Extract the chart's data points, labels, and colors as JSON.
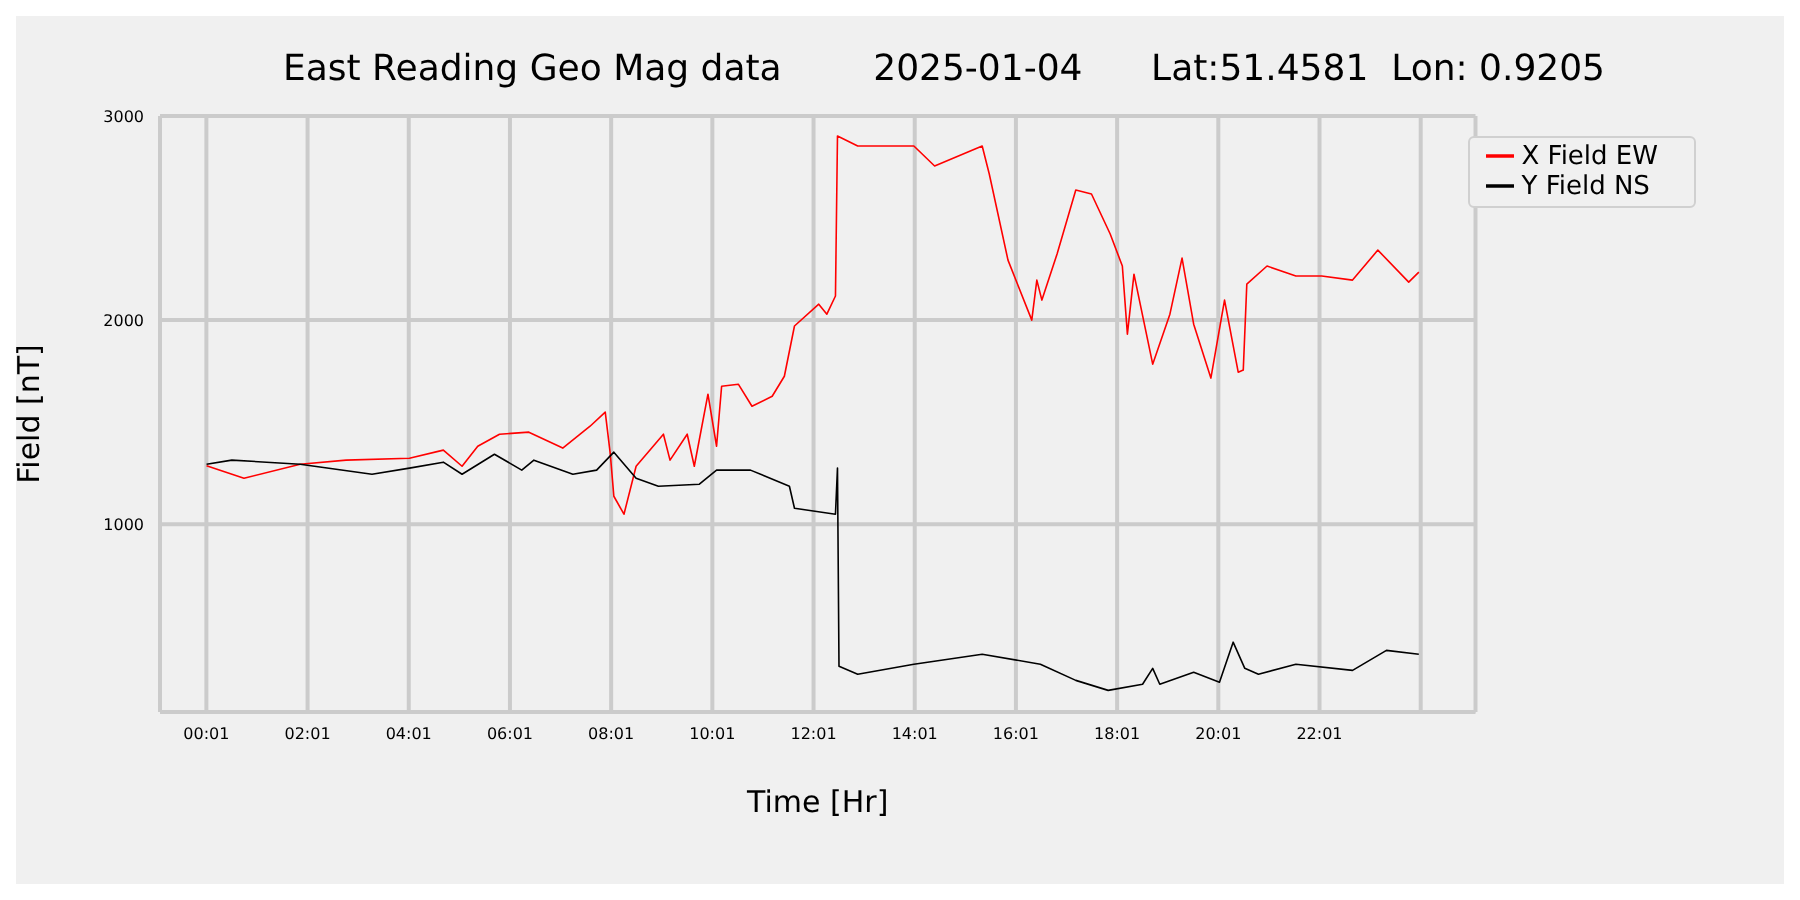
{
  "chart_data": {
    "type": "line",
    "title": "East Reading Geo Mag data        2025-01-04      Lat:51.4581  Lon: 0.9205",
    "xlabel": "Time  [Hr]",
    "ylabel": "Field  [nT]",
    "xlim": [
      -0.9,
      25.1
    ],
    "ylim": [
      80,
      3000
    ],
    "xticks": [
      {
        "value": 0.0167,
        "label": "00:01"
      },
      {
        "value": 2.0167,
        "label": "02:01"
      },
      {
        "value": 4.0167,
        "label": "04:01"
      },
      {
        "value": 6.0167,
        "label": "06:01"
      },
      {
        "value": 8.0167,
        "label": "08:01"
      },
      {
        "value": 10.0167,
        "label": "10:01"
      },
      {
        "value": 12.0167,
        "label": "12:01"
      },
      {
        "value": 14.0167,
        "label": "14:01"
      },
      {
        "value": 16.0167,
        "label": "16:01"
      },
      {
        "value": 18.0167,
        "label": "18:01"
      },
      {
        "value": 20.0167,
        "label": "20:01"
      },
      {
        "value": 22.0167,
        "label": "22:01"
      },
      {
        "value": 24.0167,
        "label": null
      }
    ],
    "yticks": [
      1000,
      2000,
      3000
    ],
    "grid": true,
    "legend": "top right",
    "marker": "none",
    "line_style": "solid",
    "series": [
      {
        "name": "X Field EW",
        "color": "#ff0000",
        "x": [
          0.02,
          0.76,
          1.87,
          2.78,
          4.03,
          4.7,
          5.07,
          5.38,
          5.81,
          6.39,
          7.06,
          7.6,
          7.9,
          8.0,
          8.07,
          8.27,
          8.51,
          9.05,
          9.18,
          9.52,
          9.66,
          9.93,
          10.1,
          10.2,
          10.53,
          10.8,
          11.2,
          11.44,
          11.64,
          12.12,
          12.28,
          12.45,
          12.49,
          12.89,
          14.0,
          14.41,
          15.35,
          15.49,
          15.86,
          16.33,
          16.43,
          16.53,
          16.83,
          17.2,
          17.51,
          17.88,
          18.12,
          18.22,
          18.35,
          18.72,
          19.06,
          19.3,
          19.53,
          19.87,
          20.14,
          20.41,
          20.51,
          20.58,
          20.98,
          21.55,
          22.06,
          22.67,
          23.17,
          23.78,
          23.98
        ],
        "values": [
          1287,
          1225,
          1294,
          1314,
          1323,
          1363,
          1284,
          1382,
          1441,
          1451,
          1373,
          1480,
          1549,
          1343,
          1137,
          1049,
          1284,
          1441,
          1314,
          1441,
          1284,
          1637,
          1382,
          1676,
          1686,
          1578,
          1627,
          1725,
          1971,
          2078,
          2029,
          2118,
          2902,
          2853,
          2853,
          2755,
          2853,
          2716,
          2294,
          2000,
          2196,
          2098,
          2324,
          2637,
          2618,
          2422,
          2265,
          1931,
          2225,
          1784,
          2029,
          2304,
          1980,
          1716,
          2098,
          1745,
          1755,
          2176,
          2265,
          2216,
          2216,
          2196,
          2343,
          2186,
          2235
        ]
      },
      {
        "name": "Y Field NS",
        "color": "#000000",
        "x": [
          0.02,
          0.52,
          1.87,
          3.29,
          4.03,
          4.7,
          5.07,
          5.71,
          6.25,
          6.49,
          7.26,
          7.73,
          8.07,
          8.51,
          8.95,
          9.76,
          10.1,
          10.77,
          11.54,
          11.64,
          12.45,
          12.49,
          12.52,
          12.89,
          14.0,
          15.35,
          16.5,
          17.2,
          17.84,
          18.52,
          18.72,
          18.86,
          19.53,
          20.04,
          20.31,
          20.54,
          20.81,
          21.55,
          22.67,
          23.34,
          23.98
        ],
        "values": [
          1294,
          1314,
          1294,
          1245,
          1275,
          1304,
          1245,
          1343,
          1265,
          1314,
          1245,
          1265,
          1353,
          1225,
          1186,
          1196,
          1265,
          1265,
          1186,
          1078,
          1049,
          1275,
          304,
          265,
          314,
          363,
          314,
          235,
          186,
          216,
          294,
          216,
          275,
          226,
          422,
          294,
          265,
          314,
          284,
          382,
          363
        ]
      }
    ]
  }
}
